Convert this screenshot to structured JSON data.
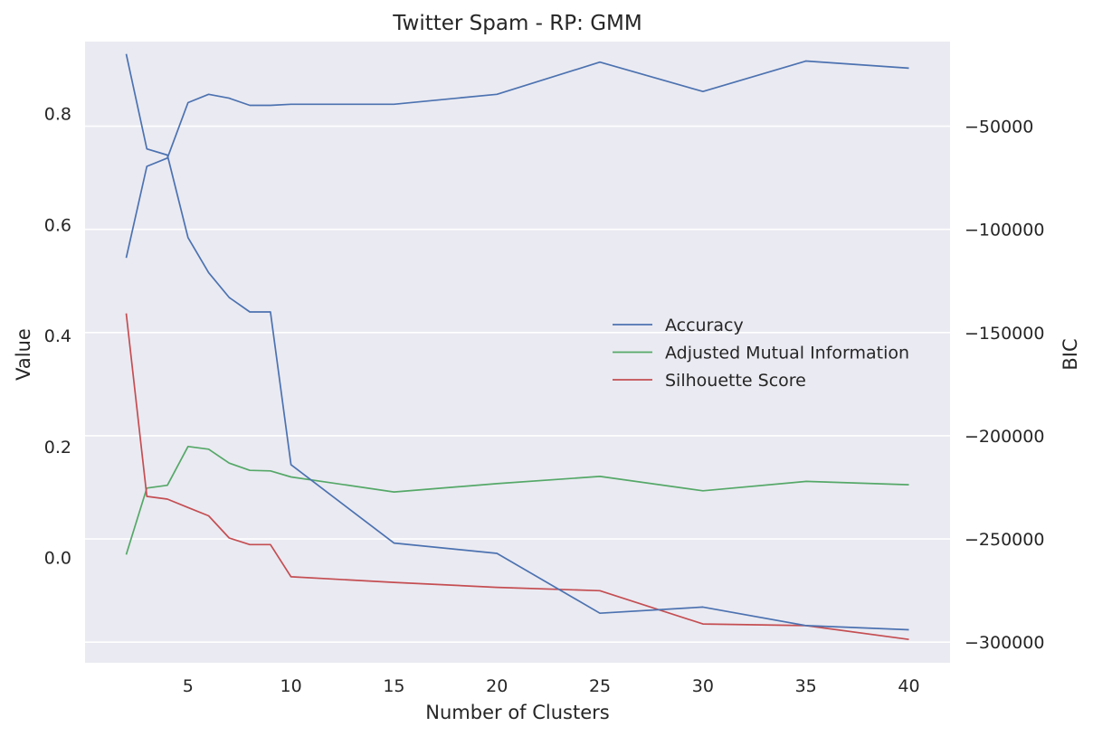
{
  "chart_data": {
    "type": "line",
    "title": "Twitter Spam - RP: GMM",
    "xlabel": "Number of Clusters",
    "ylabel": "Value",
    "y2label": "BIC",
    "x": [
      2,
      3,
      4,
      5,
      6,
      7,
      8,
      9,
      10,
      15,
      20,
      25,
      30,
      35,
      40
    ],
    "x_ticks": [
      5,
      10,
      15,
      20,
      25,
      30,
      35,
      40
    ],
    "xlim": [
      0,
      42
    ],
    "ylim": [
      -0.19,
      0.93
    ],
    "y_ticks": [
      0.0,
      0.2,
      0.4,
      0.6,
      0.8
    ],
    "y_tick_labels": [
      "0.0",
      "0.2",
      "0.4",
      "0.6",
      "0.8"
    ],
    "y2lim": [
      -310000,
      -9000
    ],
    "y2_ticks": [
      -300000,
      -250000,
      -200000,
      -150000,
      -100000,
      -50000
    ],
    "y2_tick_labels": [
      "−300000",
      "−250000",
      "−200000",
      "−150000",
      "−100000",
      "−50000"
    ],
    "grid": true,
    "grid_axis": "y2",
    "legend_position": "center-right",
    "series": [
      {
        "name": "Accuracy",
        "axis": "y",
        "color": "#4c72b0",
        "values": [
          0.54,
          0.705,
          0.72,
          0.82,
          0.835,
          0.828,
          0.815,
          0.815,
          0.817,
          0.817,
          0.835,
          0.893,
          0.84,
          0.895,
          0.882
        ]
      },
      {
        "name": "Adjusted Mutual Information",
        "axis": "y",
        "color": "#55a868",
        "values": [
          0.005,
          0.125,
          0.13,
          0.2,
          0.195,
          0.17,
          0.157,
          0.156,
          0.145,
          0.118,
          0.133,
          0.146,
          0.12,
          0.137,
          0.131
        ]
      },
      {
        "name": "Silhouette Score",
        "axis": "y",
        "color": "#c44e52",
        "values": [
          0.44,
          0.11,
          0.105,
          0.09,
          0.075,
          0.035,
          0.023,
          0.023,
          -0.035,
          -0.045,
          -0.054,
          -0.06,
          -0.12,
          -0.123,
          -0.148
        ]
      },
      {
        "name": "BIC",
        "axis": "y2",
        "color": "#4c72b0",
        "legend": false,
        "values": [
          -15000,
          -61000,
          -64000,
          -104000,
          -121000,
          -133000,
          -140000,
          -140000,
          -214000,
          -252000,
          -257000,
          -286000,
          -283000,
          -292000,
          -294000
        ]
      }
    ],
    "style": {
      "background": "#ffffff",
      "plot_background": "#eaeaf2",
      "grid_color": "#ffffff",
      "text_color": "#262626"
    }
  }
}
